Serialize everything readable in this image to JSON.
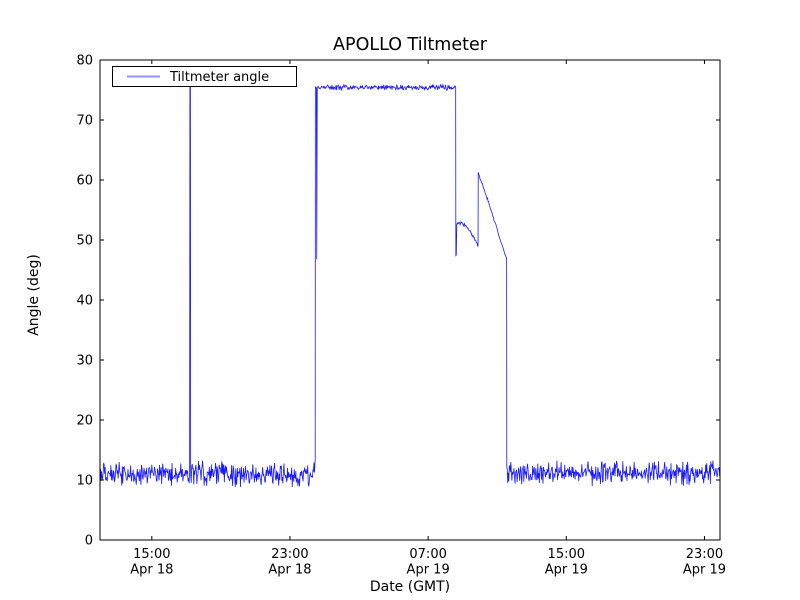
{
  "chart_data": {
    "type": "line",
    "title": "APOLLO Tiltmeter",
    "xlabel": "Date (GMT)",
    "ylabel": "Angle (deg)",
    "background_color": "#ffffff",
    "grid": false,
    "legend": {
      "position": "upper left",
      "entries": [
        {
          "label": "Tiltmeter angle",
          "color": "#0000ff"
        }
      ]
    },
    "ylim": [
      0,
      80
    ],
    "yticks": [
      0,
      10,
      20,
      30,
      40,
      50,
      60,
      70,
      80
    ],
    "x_axis": {
      "unit": "hours since Apr 18 12:00 GMT",
      "lim": [
        0,
        35.9
      ],
      "ticks": [
        {
          "h": 3,
          "time": "15:00",
          "date": "Apr 18"
        },
        {
          "h": 11,
          "time": "23:00",
          "date": "Apr 18"
        },
        {
          "h": 19,
          "time": "07:00",
          "date": "Apr 19"
        },
        {
          "h": 27,
          "time": "15:00",
          "date": "Apr 19"
        },
        {
          "h": 35,
          "time": "23:00",
          "date": "Apr 19"
        }
      ]
    },
    "series": [
      {
        "name": "Tiltmeter angle",
        "color": "#0000ff",
        "noise_seed": 20180418,
        "sample_step_h": 0.03,
        "segments": [
          {
            "type": "noisy",
            "from_h": 0.0,
            "to_h": 5.18,
            "level": 11.0,
            "noise": 2.3
          },
          {
            "type": "points",
            "pts": [
              [
                5.19,
                11.5
              ],
              [
                5.205,
                76.0
              ],
              [
                5.235,
                76.0
              ],
              [
                5.25,
                11.0
              ]
            ]
          },
          {
            "type": "noisy",
            "from_h": 5.28,
            "to_h": 12.44,
            "level": 11.0,
            "noise": 2.3
          },
          {
            "type": "points",
            "pts": [
              [
                12.46,
                13.5
              ],
              [
                12.47,
                75.5
              ],
              [
                12.53,
                75.3
              ],
              [
                12.55,
                46.8
              ],
              [
                12.58,
                75.5
              ]
            ]
          },
          {
            "type": "noisy",
            "from_h": 12.62,
            "to_h": 20.58,
            "level": 75.45,
            "noise": 0.55
          },
          {
            "type": "points",
            "pts": [
              [
                20.595,
                75.4
              ],
              [
                20.605,
                47.4
              ],
              [
                20.63,
                47.5
              ],
              [
                20.66,
                52.6
              ]
            ]
          },
          {
            "type": "path",
            "noise": 0.3,
            "pts": [
              [
                20.7,
                52.7
              ],
              [
                20.9,
                52.85
              ],
              [
                21.1,
                52.55
              ],
              [
                21.3,
                51.95
              ],
              [
                21.5,
                51.05
              ],
              [
                21.7,
                50.05
              ],
              [
                21.85,
                49.3
              ],
              [
                21.89,
                49.0
              ]
            ]
          },
          {
            "type": "points",
            "pts": [
              [
                21.9,
                61.3
              ]
            ]
          },
          {
            "type": "path",
            "noise": 0.25,
            "pts": [
              [
                21.95,
                60.8
              ],
              [
                22.15,
                59.2
              ],
              [
                22.35,
                57.5
              ],
              [
                22.55,
                55.8
              ],
              [
                22.75,
                54.0
              ],
              [
                22.95,
                52.2
              ],
              [
                23.15,
                50.3
              ],
              [
                23.35,
                48.6
              ],
              [
                23.5,
                47.3
              ],
              [
                23.53,
                47.0
              ]
            ]
          },
          {
            "type": "points",
            "pts": [
              [
                23.545,
                47.0
              ],
              [
                23.555,
                12.0
              ]
            ]
          },
          {
            "type": "noisy",
            "from_h": 23.58,
            "to_h": 35.9,
            "level": 11.2,
            "noise": 2.3
          }
        ]
      }
    ]
  }
}
